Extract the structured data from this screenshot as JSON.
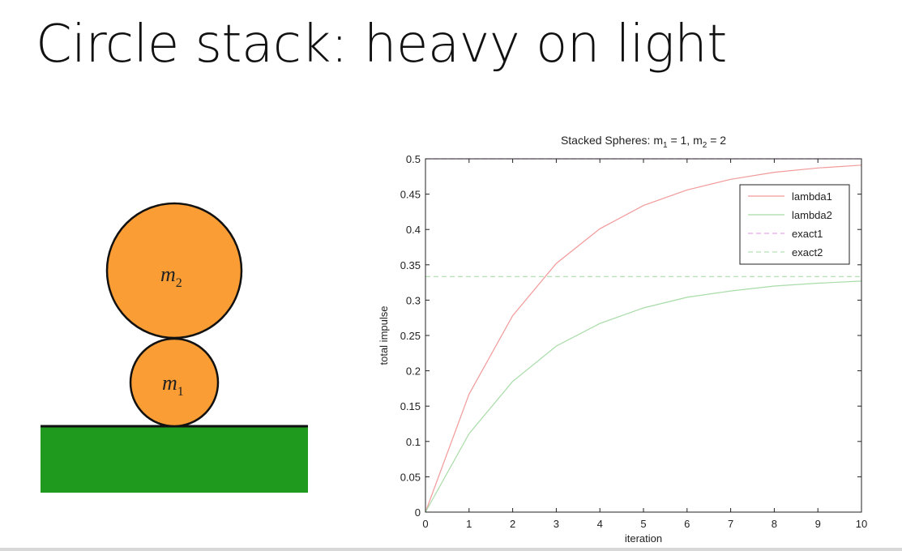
{
  "slide": {
    "title": "Circle stack: heavy on light"
  },
  "diagram": {
    "ground_color": "#1f9a1f",
    "circle_color": "#f99d34",
    "circles": [
      {
        "name": "m1",
        "base": "m",
        "subscript": "1"
      },
      {
        "name": "m2",
        "base": "m",
        "subscript": "2"
      }
    ]
  },
  "chart_data": {
    "type": "line",
    "title_parts": {
      "prefix": "Stacked Spheres: m",
      "sub1": "1",
      "mid": " = 1, m",
      "sub2": "2",
      "suffix": " = 2"
    },
    "xlabel": "iteration",
    "ylabel": "total impulse",
    "xlim": [
      0,
      10
    ],
    "ylim": [
      0,
      0.5
    ],
    "xticks": [
      0,
      1,
      2,
      3,
      4,
      5,
      6,
      7,
      8,
      9,
      10
    ],
    "yticks": [
      0,
      0.05,
      0.1,
      0.15,
      0.2,
      0.25,
      0.3,
      0.35,
      0.4,
      0.45,
      0.5
    ],
    "ytick_labels": [
      "0",
      "0.05",
      "0.1",
      "0.15",
      "0.2",
      "0.25",
      "0.3",
      "0.35",
      "0.4",
      "0.45",
      "0.5"
    ],
    "xtick_labels": [
      "0",
      "1",
      "2",
      "3",
      "4",
      "5",
      "6",
      "7",
      "8",
      "9",
      "10"
    ],
    "grid": false,
    "legend_position": "top-right",
    "series": [
      {
        "name": "lambda1",
        "color": "#f29a9a",
        "dash": "solid",
        "x": [
          0,
          1,
          2,
          3,
          4,
          5,
          6,
          7,
          8,
          9,
          10
        ],
        "y": [
          0,
          0.167,
          0.278,
          0.352,
          0.401,
          0.434,
          0.456,
          0.471,
          0.481,
          0.487,
          0.491
        ]
      },
      {
        "name": "lambda2",
        "color": "#a8dca8",
        "dash": "solid",
        "x": [
          0,
          1,
          2,
          3,
          4,
          5,
          6,
          7,
          8,
          9,
          10
        ],
        "y": [
          0,
          0.111,
          0.185,
          0.235,
          0.267,
          0.289,
          0.304,
          0.313,
          0.32,
          0.324,
          0.327
        ]
      },
      {
        "name": "exact1",
        "color": "#e6a6e6",
        "dash": "dashed",
        "x": [
          0,
          10
        ],
        "y": [
          0.5,
          0.5
        ]
      },
      {
        "name": "exact2",
        "color": "#b6e0b6",
        "dash": "dashed",
        "x": [
          0,
          10
        ],
        "y": [
          0.3333,
          0.3333
        ]
      }
    ]
  }
}
